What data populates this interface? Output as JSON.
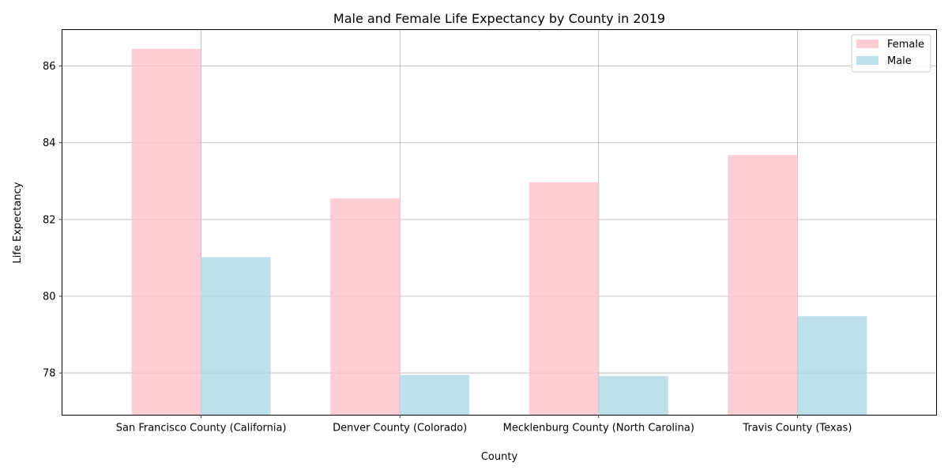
{
  "chart_data": {
    "type": "bar",
    "title": "Male and Female Life Expectancy by County in 2019",
    "xlabel": "County",
    "ylabel": "Life Expectancy",
    "categories": [
      "San Francisco County (California)",
      "Denver County (Colorado)",
      "Mecklenburg County (North Carolina)",
      "Travis County (Texas)"
    ],
    "series": [
      {
        "name": "Female",
        "color": "#ffc0cb",
        "values": [
          86.45,
          82.55,
          82.97,
          83.68
        ]
      },
      {
        "name": "Male",
        "color": "#add8e6",
        "values": [
          81.02,
          77.95,
          77.92,
          79.48
        ]
      }
    ],
    "ylim": [
      76.9,
      86.95
    ],
    "yticks": [
      78,
      80,
      82,
      84,
      86
    ],
    "grid": true,
    "legend_position": "top-right"
  }
}
